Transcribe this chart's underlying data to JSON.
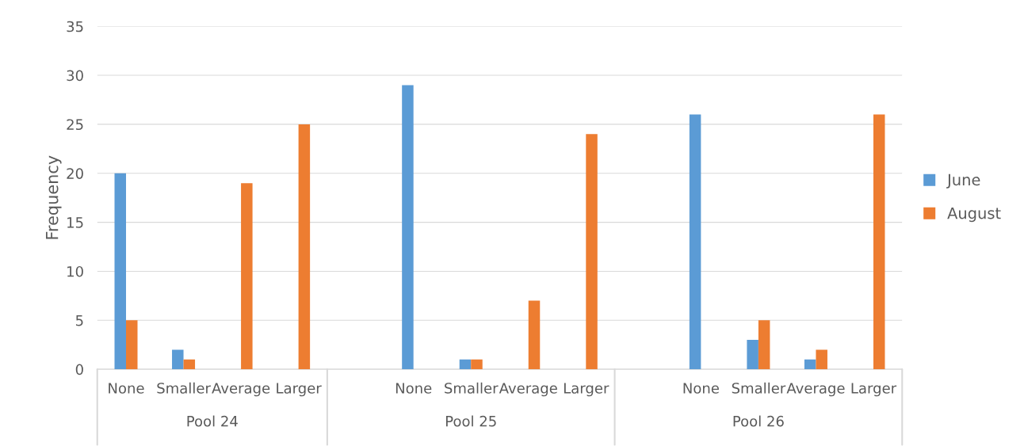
{
  "chart_data": {
    "type": "bar",
    "ylabel": "Frequency",
    "categories": [
      "None",
      "Smaller",
      "Average",
      "Larger",
      null,
      "None",
      "Smaller",
      "Average",
      "Larger",
      null,
      "None",
      "Smaller",
      "Average",
      "Larger"
    ],
    "series": [
      {
        "name": "June",
        "color": "#5b9bd5",
        "values": [
          20,
          2,
          0,
          0,
          null,
          29,
          1,
          0,
          0,
          null,
          26,
          3,
          1,
          0
        ]
      },
      {
        "name": "August",
        "color": "#ed7d31",
        "values": [
          5,
          1,
          19,
          25,
          null,
          0,
          1,
          7,
          24,
          null,
          0,
          5,
          2,
          26
        ]
      }
    ],
    "annotations": [
      "Pool 24",
      "Pool 25",
      "Pool 26"
    ],
    "ylim": [
      0,
      35
    ],
    "yticks": [
      0,
      5,
      10,
      15,
      20,
      25,
      30,
      35
    ],
    "grid": "y",
    "legend": "right"
  }
}
